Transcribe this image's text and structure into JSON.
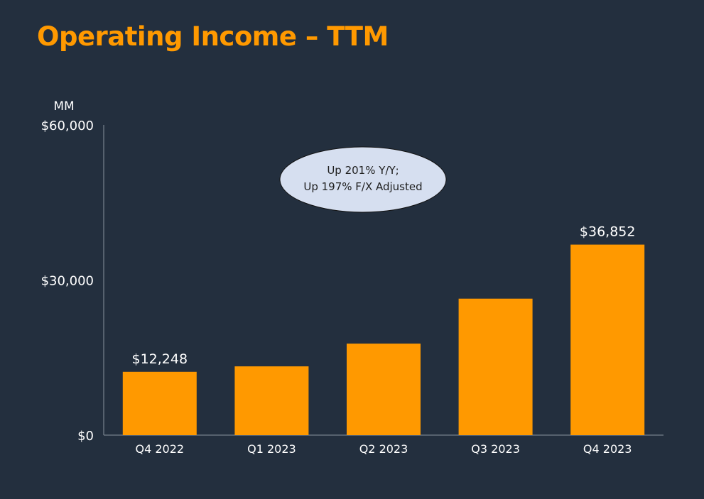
{
  "slide": {
    "title": "Operating Income – TTM"
  },
  "colors": {
    "background": "#232f3e",
    "accent": "#ff9900",
    "text": "#ffffff",
    "axis": "#8a939e",
    "callout_fill": "#d6dff0",
    "callout_text": "#1e1e1e"
  },
  "chart_data": {
    "type": "bar",
    "title": "Operating Income – TTM",
    "unit_label": "MM",
    "categories": [
      "Q4 2022",
      "Q1 2023",
      "Q2 2023",
      "Q3 2023",
      "Q4 2023"
    ],
    "values": [
      12248,
      13300,
      17700,
      26400,
      36852
    ],
    "data_labels": [
      "$12,248",
      "",
      "",
      "",
      "$36,852"
    ],
    "ylim": [
      0,
      60000
    ],
    "yticks": [
      0,
      30000,
      60000
    ],
    "ytick_labels": [
      "$0",
      "$30,000",
      "$60,000"
    ],
    "xlabel": "",
    "ylabel": "",
    "grid": false,
    "legend": "none",
    "annotation": {
      "lines": [
        "Up 201% Y/Y;",
        "Up 197% F/X Adjusted"
      ],
      "placement": "upper-center"
    }
  }
}
